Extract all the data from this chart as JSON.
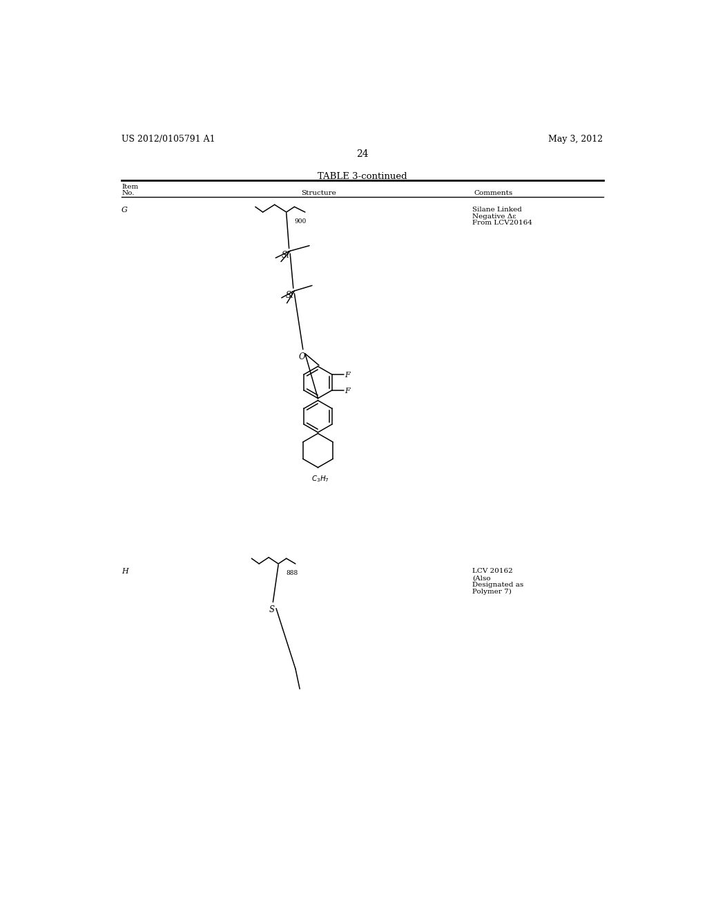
{
  "page_header_left": "US 2012/0105791 A1",
  "page_header_right": "May 3, 2012",
  "page_number": "24",
  "table_title": "TABLE 3-continued",
  "col1_header_line1": "Item",
  "col1_header_line2": "No.",
  "col2_header": "Structure",
  "col3_header": "Comments",
  "row_G_item": "G",
  "row_G_comment_line1": "Silane Linked",
  "row_G_comment_line2": "Negative Δε",
  "row_G_comment_line3": "From LCV20164",
  "row_H_item": "H",
  "row_H_comment_line1": "LCV 20162",
  "row_H_comment_line2": "(Also",
  "row_H_comment_line3": "Designated as",
  "row_H_comment_line4": "Polymer 7)",
  "bg_color": "#ffffff",
  "text_color": "#000000",
  "line_color": "#000000"
}
